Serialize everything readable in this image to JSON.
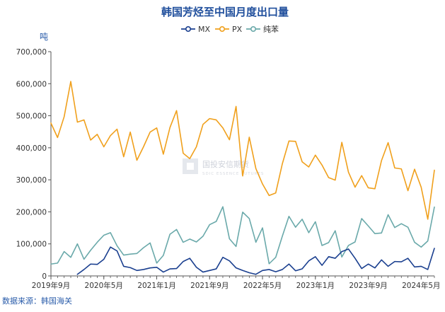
{
  "chart_data": {
    "type": "line",
    "title": "韩国芳烃至中国月度出口量",
    "ylabel": "吨",
    "ylim": [
      0,
      700000
    ],
    "yticks": [
      0,
      100000,
      200000,
      300000,
      400000,
      500000,
      600000,
      700000
    ],
    "ytick_labels": [
      "0",
      "100,000",
      "200,000",
      "300,000",
      "400,000",
      "500,000",
      "600,000",
      "700,000"
    ],
    "x_start": "2019-09",
    "x_end": "2024-07",
    "xtick_labels": [
      "2019年9月",
      "2020年5月",
      "2021年1月",
      "2021年9月",
      "2022年5月",
      "2023年1月",
      "2023年9月",
      "2024年5月"
    ],
    "xtick_index": [
      0,
      8,
      16,
      24,
      32,
      40,
      48,
      56
    ],
    "legend_position": "top-center",
    "source": "数据来源：韩国海关",
    "watermark": {
      "text": "国投安信期货",
      "subtext": "SDIC ESSENCE FUTURES"
    },
    "series": [
      {
        "name": "MX",
        "color": "#1a3f8f",
        "values": [
          null,
          null,
          null,
          null,
          5000,
          20000,
          37000,
          36000,
          52000,
          90000,
          78000,
          30000,
          26000,
          17000,
          20000,
          25000,
          27000,
          12000,
          22000,
          23000,
          45000,
          55000,
          27000,
          12000,
          17000,
          22000,
          58000,
          47000,
          25000,
          17000,
          10000,
          5000,
          17000,
          20000,
          13000,
          20000,
          37000,
          16000,
          22000,
          47000,
          60000,
          33000,
          60000,
          55000,
          76000,
          84000,
          55000,
          23000,
          37000,
          25000,
          50000,
          30000,
          45000,
          44000,
          55000,
          28000,
          30000,
          20000,
          86000
        ]
      },
      {
        "name": "PX",
        "color": "#f0a01c",
        "values": [
          477000,
          432000,
          497000,
          607000,
          480000,
          487000,
          424000,
          442000,
          403000,
          438000,
          458000,
          372000,
          449000,
          361000,
          403000,
          449000,
          462000,
          380000,
          463000,
          516000,
          383000,
          366000,
          403000,
          473000,
          491000,
          487000,
          462000,
          425000,
          529000,
          312000,
          433000,
          335000,
          287000,
          251000,
          259000,
          350000,
          421000,
          420000,
          356000,
          340000,
          377000,
          346000,
          307000,
          299000,
          417000,
          324000,
          277000,
          313000,
          275000,
          272000,
          360000,
          416000,
          337000,
          334000,
          266000,
          333000,
          277000,
          177000,
          330000
        ]
      },
      {
        "name": "纯苯",
        "color": "#6aa9aa",
        "values": [
          37000,
          40000,
          76000,
          58000,
          100000,
          52000,
          80000,
          105000,
          127000,
          135000,
          94000,
          65000,
          68000,
          70000,
          88000,
          103000,
          40000,
          64000,
          130000,
          145000,
          105000,
          115000,
          106000,
          124000,
          160000,
          170000,
          216000,
          116000,
          92000,
          199000,
          179000,
          105000,
          150000,
          38000,
          58000,
          124000,
          186000,
          152000,
          177000,
          135000,
          169000,
          95000,
          104000,
          141000,
          59000,
          95000,
          106000,
          179000,
          156000,
          132000,
          134000,
          191000,
          151000,
          163000,
          152000,
          105000,
          90000,
          109000,
          215000
        ]
      }
    ]
  }
}
